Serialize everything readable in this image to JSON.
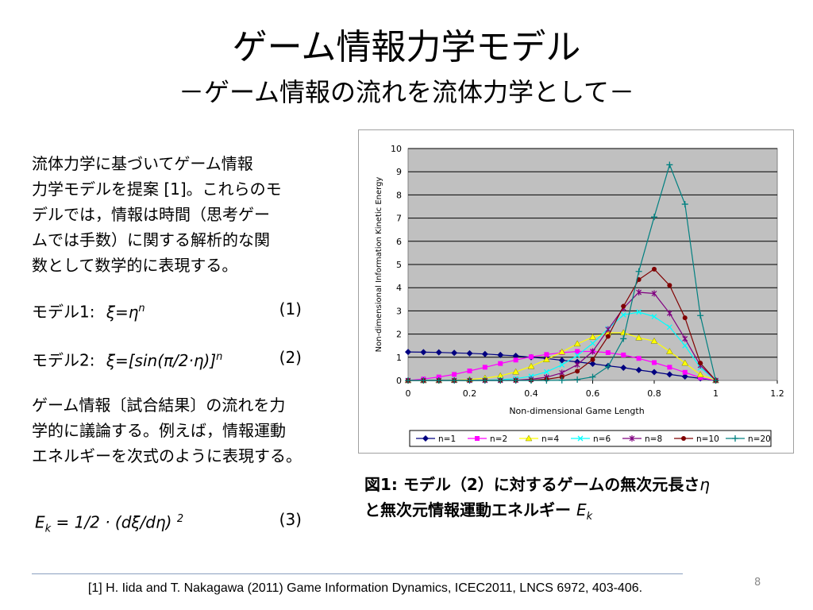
{
  "slide": {
    "title": "ゲーム情報力学モデル",
    "subtitle": "－ゲーム情報の流れを流体力学として－",
    "intro_lines": [
      "流体力学に基づいてゲーム情報",
      "力学モデルを提案 [1]。これらのモ",
      "デルでは，情報は時間（思考ゲー",
      "ムでは手数）に関する解析的な関",
      "数として数学的に表現する。"
    ],
    "model1": {
      "label": "モデル1:",
      "expr": "ξ=η",
      "sup": "n",
      "number": "(1)"
    },
    "model2": {
      "label": "モデル2:",
      "expr": "ξ=[sin(π/2·η)]",
      "sup": "n",
      "number": "(2)"
    },
    "body2_lines": [
      "ゲーム情報〔試合結果〕の流れを力",
      "学的に議論する。例えば，情報運動",
      "エネルギーを次式のように表現する。"
    ],
    "formula3": {
      "lhs": "E",
      "lhs_sub": "k",
      "rhs": " = 1/2 · (dξ/dη) ",
      "sup": "2",
      "number": "(3)"
    },
    "caption_line1": "図1: モデル（2）に対するゲームの無次元長さ",
    "caption_eta": "η",
    "caption_line2": "と無次元情報運動エネルギー ",
    "caption_ek": "E",
    "caption_ek_sub": "k",
    "footnote": "[1] H. Iida and T. Nakagawa (2011) Game Information Dynamics, ICEC2011, LNCS 6972, 403-406.",
    "page_number": "8"
  },
  "chart_data": {
    "type": "line",
    "title": "",
    "xlabel": "Non-dimensional Game Length",
    "ylabel": "Non-dimensional Information Kinetic Energy",
    "xlim": [
      0,
      1.2
    ],
    "ylim": [
      0,
      10
    ],
    "xticks": [
      "0",
      "0.2",
      "0.4",
      "0.6",
      "0.8",
      "1",
      "1.2"
    ],
    "yticks": [
      "0",
      "1",
      "2",
      "3",
      "4",
      "5",
      "6",
      "7",
      "8",
      "9",
      "10"
    ],
    "grid": true,
    "legend_position": "bottom",
    "x": [
      0,
      0.05,
      0.1,
      0.15,
      0.2,
      0.25,
      0.3,
      0.35,
      0.4,
      0.45,
      0.5,
      0.55,
      0.6,
      0.65,
      0.7,
      0.75,
      0.8,
      0.85,
      0.9,
      0.95,
      1.0
    ],
    "series": [
      {
        "name": "n=1",
        "color": "#000080",
        "marker": "diamond",
        "values": [
          1.23,
          1.22,
          1.21,
          1.19,
          1.17,
          1.14,
          1.1,
          1.06,
          1.0,
          0.95,
          0.87,
          0.8,
          0.72,
          0.63,
          0.55,
          0.45,
          0.36,
          0.26,
          0.17,
          0.09,
          0.0
        ]
      },
      {
        "name": "n=2",
        "color": "#ff00ff",
        "marker": "square",
        "values": [
          0.0,
          0.06,
          0.15,
          0.26,
          0.41,
          0.57,
          0.73,
          0.88,
          1.02,
          1.12,
          1.2,
          1.25,
          1.25,
          1.2,
          1.1,
          0.95,
          0.77,
          0.57,
          0.35,
          0.12,
          0.0
        ]
      },
      {
        "name": "n=4",
        "color": "#ffff00",
        "marker": "triangle",
        "values": [
          0.0,
          0.0,
          0.0,
          0.01,
          0.04,
          0.1,
          0.2,
          0.37,
          0.61,
          0.9,
          1.23,
          1.58,
          1.87,
          2.05,
          2.06,
          1.84,
          1.7,
          1.25,
          0.75,
          0.25,
          0.0
        ]
      },
      {
        "name": "n=6",
        "color": "#00ffff",
        "marker": "x",
        "values": [
          0.0,
          0.0,
          0.0,
          0.0,
          0.0,
          0.01,
          0.03,
          0.08,
          0.18,
          0.37,
          0.67,
          1.08,
          1.6,
          2.23,
          2.83,
          2.95,
          2.75,
          2.3,
          1.5,
          0.55,
          0.0
        ]
      },
      {
        "name": "n=8",
        "color": "#800080",
        "marker": "star",
        "values": [
          0.0,
          0.0,
          0.0,
          0.0,
          0.0,
          0.0,
          0.0,
          0.01,
          0.05,
          0.14,
          0.33,
          0.68,
          1.25,
          2.2,
          3.12,
          3.8,
          3.75,
          2.9,
          1.8,
          0.65,
          0.0
        ]
      },
      {
        "name": "n=10",
        "color": "#800000",
        "marker": "circle",
        "values": [
          0.0,
          0.0,
          0.0,
          0.0,
          0.0,
          0.0,
          0.0,
          0.0,
          0.01,
          0.05,
          0.15,
          0.4,
          0.9,
          1.9,
          3.2,
          4.35,
          4.8,
          4.1,
          2.7,
          0.75,
          0.0
        ]
      },
      {
        "name": "n=20",
        "color": "#008080",
        "marker": "plus",
        "values": [
          0.0,
          0.0,
          0.0,
          0.0,
          0.0,
          0.0,
          0.0,
          0.0,
          0.0,
          0.0,
          0.01,
          0.04,
          0.15,
          0.6,
          1.8,
          4.7,
          7.05,
          9.3,
          7.6,
          2.8,
          0.0
        ]
      }
    ]
  }
}
